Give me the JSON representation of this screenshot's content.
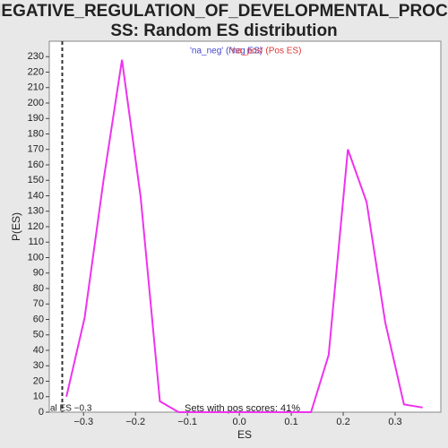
{
  "chart_data": {
    "type": "line",
    "title": [
      "NEGATIVE_REGULATION_OF_DEVELOPMENTAL_PROCE",
      "SS: Random ES distribution"
    ],
    "x_label": "ES",
    "y_label": "P(ES)",
    "x": [
      -0.333,
      -0.298,
      -0.262,
      -0.226,
      -0.19,
      -0.153,
      -0.117,
      -0.081,
      -0.045,
      -0.009,
      0.028,
      0.064,
      0.1,
      0.138,
      0.172,
      0.209,
      0.245,
      0.281,
      0.317,
      0.353
    ],
    "series": [
      {
        "color": "#ee33ee",
        "values": [
          10,
          61,
          149,
          228,
          139,
          7,
          0,
          0,
          0,
          0,
          0,
          0,
          0,
          0,
          37,
          170,
          136,
          58,
          5,
          3
        ]
      }
    ],
    "legend": [
      {
        "name": "'na_neg' (Neg ES)",
        "color": "#4444cc"
      },
      {
        "name": "'na_pos' (Pos ES)",
        "color": "#dd3333"
      }
    ],
    "actual_es": {
      "value": -0.341,
      "label": "al ES −0.3"
    },
    "annotation": "Sets with pos scores: 41%",
    "xlim": [
      -0.366,
      0.388
    ],
    "ylim": [
      0,
      240
    ],
    "xticks": [
      {
        "value": -0.3,
        "label": "−0.3"
      },
      {
        "value": -0.2,
        "label": "−0.2"
      },
      {
        "value": -0.1,
        "label": "−0.1"
      },
      {
        "value": 0,
        "label": "0.0"
      },
      0.1,
      0.2,
      0.3
    ],
    "yticks": [
      0,
      10,
      20,
      30,
      40,
      50,
      60,
      70,
      80,
      90,
      100,
      110,
      120,
      130,
      140,
      150,
      160,
      170,
      180,
      190,
      200,
      210,
      220,
      230
    ],
    "grid": false
  }
}
